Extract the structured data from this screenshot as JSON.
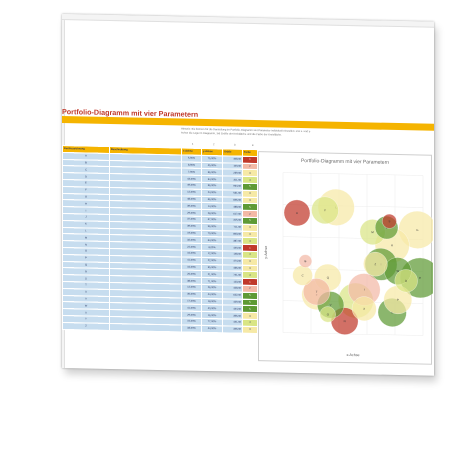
{
  "sheet": {
    "title": "Portfolio-Diagramm mit vier Parametern",
    "description": "Hinweis: Sie können für die Darstellung im Portfolio-Diagramm vier Parameter individuell einstellen: erst x- und y-Achse die Lage im Diagramm, 3rd Größe der Kreisfläche und die Farbe der Kreisfläche.",
    "param_numbers": [
      "1",
      "2",
      "3",
      "4"
    ]
  },
  "table": {
    "headers": [
      "Kurzbezeichnung",
      "Beschreibung",
      "x-Achse",
      "y-Achse",
      "Größe",
      "Farbe"
    ],
    "rows": [
      {
        "name": "A",
        "x": "5,00%",
        "y": "75,00%",
        "size": "408,00",
        "color": "1"
      },
      {
        "name": "B",
        "x": "8,00%",
        "y": "45,00%",
        "size": "100,00",
        "color": "2"
      },
      {
        "name": "C",
        "x": "7,00%",
        "y": "36,00%",
        "size": "239,00",
        "color": "3"
      },
      {
        "name": "D",
        "x": "44,00%",
        "y": "34,00%",
        "size": "311,00",
        "color": "4"
      },
      {
        "name": "E",
        "x": "49,00%",
        "y": "36,00%",
        "size": "964,00",
        "color": "5"
      },
      {
        "name": "F",
        "x": "12,00%",
        "y": "24,00%",
        "size": "531,00",
        "color": "3"
      },
      {
        "name": "G",
        "x": "48,00%",
        "y": "66,00%",
        "size": "846,00",
        "color": "3"
      },
      {
        "name": "H",
        "x": "39,00%",
        "y": "14,00%",
        "size": "488,00",
        "color": "5"
      },
      {
        "name": "I",
        "x": "29,00%",
        "y": "28,00%",
        "size": "617,00",
        "color": "2"
      },
      {
        "name": "J",
        "x": "37,00%",
        "y": "67,00%",
        "size": "315,00",
        "color": "5"
      },
      {
        "name": "K",
        "x": "39,00%",
        "y": "56,00%",
        "size": "711,00",
        "color": "3"
      },
      {
        "name": "L",
        "x": "19,00%",
        "y": "79,00%",
        "size": "803,00",
        "color": "3"
      },
      {
        "name": "M",
        "x": "32,00%",
        "y": "64,00%",
        "size": "387,00",
        "color": "4"
      },
      {
        "name": "N",
        "x": "22,00%",
        "y": "8,00%",
        "size": "440,00",
        "color": "1"
      },
      {
        "name": "O",
        "x": "16,00%",
        "y": "12,00%",
        "size": "148,00",
        "color": "4"
      },
      {
        "name": "P",
        "x": "41,00%",
        "y": "22,00%",
        "size": "474,00",
        "color": "3"
      },
      {
        "name": "Q",
        "x": "16,00%",
        "y": "35,00%",
        "size": "436,00",
        "color": "3"
      },
      {
        "name": "R",
        "x": "26,00%",
        "y": "21,00%",
        "size": "741,00",
        "color": "4"
      },
      {
        "name": "S",
        "x": "38,00%",
        "y": "71,00%",
        "size": "123,00",
        "color": "1"
      },
      {
        "name": "T",
        "x": "12,00%",
        "y": "26,00%",
        "size": "428,00",
        "color": "2"
      },
      {
        "name": "U",
        "x": "35,00%",
        "y": "44,00%",
        "size": "622,00",
        "color": "5"
      },
      {
        "name": "V",
        "x": "17,00%",
        "y": "18,00%",
        "size": "429,00",
        "color": "5"
      },
      {
        "name": "W",
        "x": "41,00%",
        "y": "40,00%",
        "size": "444,00",
        "color": "5"
      },
      {
        "name": "X",
        "x": "29,00%",
        "y": "16,00%",
        "size": "356,00",
        "color": "3"
      },
      {
        "name": "Y",
        "x": "15,00%",
        "y": "77,00%",
        "size": "441,00",
        "color": "4"
      },
      {
        "name": "Z",
        "x": "33,00%",
        "y": "44,00%",
        "size": "346,00",
        "color": "3"
      }
    ]
  },
  "colors": {
    "1": "#c0392b",
    "2": "#f3b9a6",
    "3": "#f6e9a6",
    "4": "#d9e585",
    "5": "#5e9a35"
  },
  "chart_data": {
    "type": "scatter",
    "title": "Portfolio-Diagramm mit vier Parametern",
    "xlabel": "x-Achse",
    "ylabel": "y-Achse",
    "xlim": [
      0,
      50
    ],
    "ylim": [
      0,
      100
    ],
    "grid": true,
    "bubbles": [
      {
        "label": "A",
        "x": 5,
        "y": 75,
        "size": 408,
        "color": "1"
      },
      {
        "label": "B",
        "x": 8,
        "y": 45,
        "size": 100,
        "color": "2"
      },
      {
        "label": "C",
        "x": 7,
        "y": 36,
        "size": 239,
        "color": "3"
      },
      {
        "label": "D",
        "x": 44,
        "y": 34,
        "size": 311,
        "color": "4"
      },
      {
        "label": "E",
        "x": 49,
        "y": 36,
        "size": 964,
        "color": "5"
      },
      {
        "label": "F",
        "x": 12,
        "y": 24,
        "size": 531,
        "color": "3"
      },
      {
        "label": "G",
        "x": 48,
        "y": 66,
        "size": 846,
        "color": "3"
      },
      {
        "label": "H",
        "x": 39,
        "y": 14,
        "size": 488,
        "color": "5"
      },
      {
        "label": "I",
        "x": 29,
        "y": 28,
        "size": 617,
        "color": "2"
      },
      {
        "label": "J",
        "x": 37,
        "y": 67,
        "size": 315,
        "color": "5"
      },
      {
        "label": "K",
        "x": 39,
        "y": 56,
        "size": 711,
        "color": "3"
      },
      {
        "label": "L",
        "x": 19,
        "y": 79,
        "size": 803,
        "color": "3"
      },
      {
        "label": "M",
        "x": 32,
        "y": 64,
        "size": 387,
        "color": "4"
      },
      {
        "label": "N",
        "x": 22,
        "y": 8,
        "size": 440,
        "color": "1"
      },
      {
        "label": "O",
        "x": 16,
        "y": 12,
        "size": 148,
        "color": "4"
      },
      {
        "label": "P",
        "x": 41,
        "y": 22,
        "size": 474,
        "color": "3"
      },
      {
        "label": "Q",
        "x": 16,
        "y": 35,
        "size": 436,
        "color": "3"
      },
      {
        "label": "R",
        "x": 26,
        "y": 21,
        "size": 741,
        "color": "4"
      },
      {
        "label": "S",
        "x": 38,
        "y": 71,
        "size": 123,
        "color": "1"
      },
      {
        "label": "T",
        "x": 12,
        "y": 26,
        "size": 428,
        "color": "2"
      },
      {
        "label": "U",
        "x": 35,
        "y": 44,
        "size": 622,
        "color": "5"
      },
      {
        "label": "V",
        "x": 17,
        "y": 18,
        "size": 429,
        "color": "5"
      },
      {
        "label": "W",
        "x": 41,
        "y": 40,
        "size": 444,
        "color": "5"
      },
      {
        "label": "X",
        "x": 29,
        "y": 16,
        "size": 356,
        "color": "3"
      },
      {
        "label": "Y",
        "x": 15,
        "y": 77,
        "size": 441,
        "color": "4"
      },
      {
        "label": "Z",
        "x": 33,
        "y": 44,
        "size": 346,
        "color": "3"
      }
    ]
  }
}
